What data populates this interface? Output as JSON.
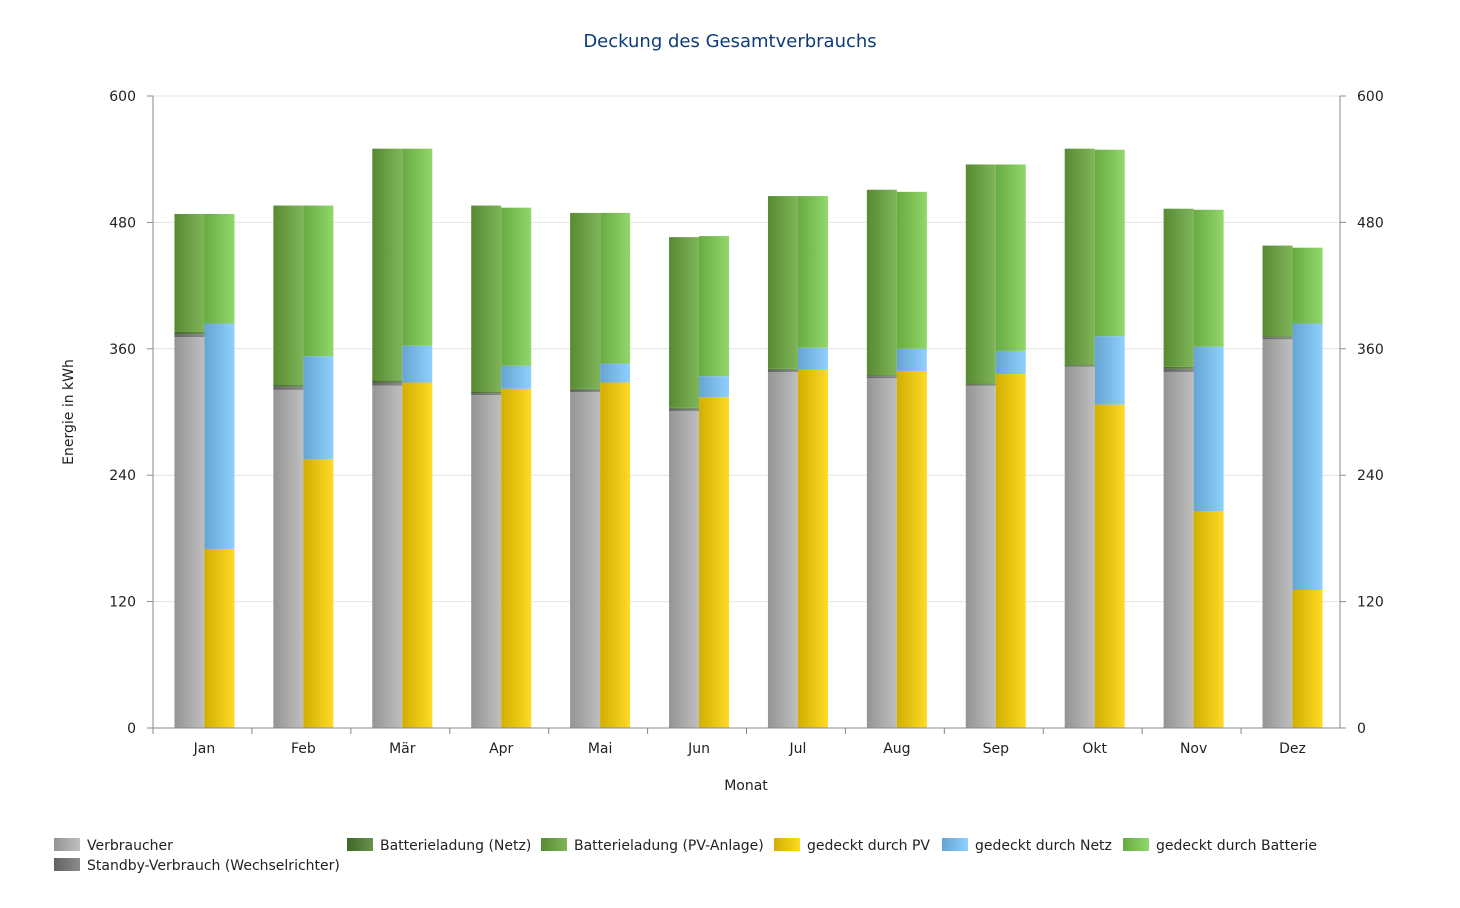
{
  "chart_data": {
    "type": "bar",
    "title": "Deckung des Gesamtverbrauchs",
    "xlabel": "Monat",
    "ylabel": "Energie in kWh",
    "ylim": [
      0,
      600
    ],
    "yticks": [
      0,
      120,
      240,
      360,
      480,
      600
    ],
    "y2ticks": [
      0,
      120,
      240,
      360,
      480,
      600
    ],
    "grid": true,
    "legend_position": "bottom",
    "categories": [
      "Jan",
      "Feb",
      "Mär",
      "Apr",
      "Mai",
      "Jun",
      "Jul",
      "Aug",
      "Sep",
      "Okt",
      "Nov",
      "Dez"
    ],
    "stacks": [
      {
        "stack": "consumption",
        "series": [
          {
            "name": "Verbraucher",
            "color": "#b4b4b4",
            "values": [
              371,
              321,
              325,
              316,
              319,
              301,
              338,
              332,
              325,
              343,
              338,
              369
            ]
          },
          {
            "name": "Standby-Verbrauch (Wechselrichter)",
            "color": "#777777",
            "values": [
              3,
              3,
              3,
              2,
              2,
              2,
              2,
              2,
              1,
              1,
              3,
              2
            ]
          },
          {
            "name": "Batterieladung (Netz)",
            "color": "#4e7d30",
            "values": [
              2,
              2,
              2,
              1,
              1,
              1,
              1,
              1,
              1,
              1,
              2,
              1
            ]
          },
          {
            "name": "Batterieladung (PV-Anlage)",
            "color": "#6aa83c",
            "values": [
              112,
              170,
              220,
              177,
              167,
              162,
              164,
              176,
              208,
              205,
              150,
              86
            ]
          }
        ]
      },
      {
        "stack": "coverage",
        "series": [
          {
            "name": "gedeckt durch PV",
            "color": "#ffd400",
            "values": [
              170,
              255,
              328,
              322,
              328,
              314,
              340,
              339,
              336,
              307,
              206,
              131
            ]
          },
          {
            "name": "gedeckt durch Netz",
            "color": "#7cc8ff",
            "values": [
              214,
              98,
              35,
              22,
              18,
              20,
              21,
              21,
              22,
              65,
              156,
              253
            ]
          },
          {
            "name": "gedeckt durch Batterie",
            "color": "#7dd050",
            "values": [
              104,
              143,
              187,
              150,
              143,
              133,
              144,
              149,
              177,
              177,
              130,
              72
            ]
          }
        ]
      }
    ]
  }
}
